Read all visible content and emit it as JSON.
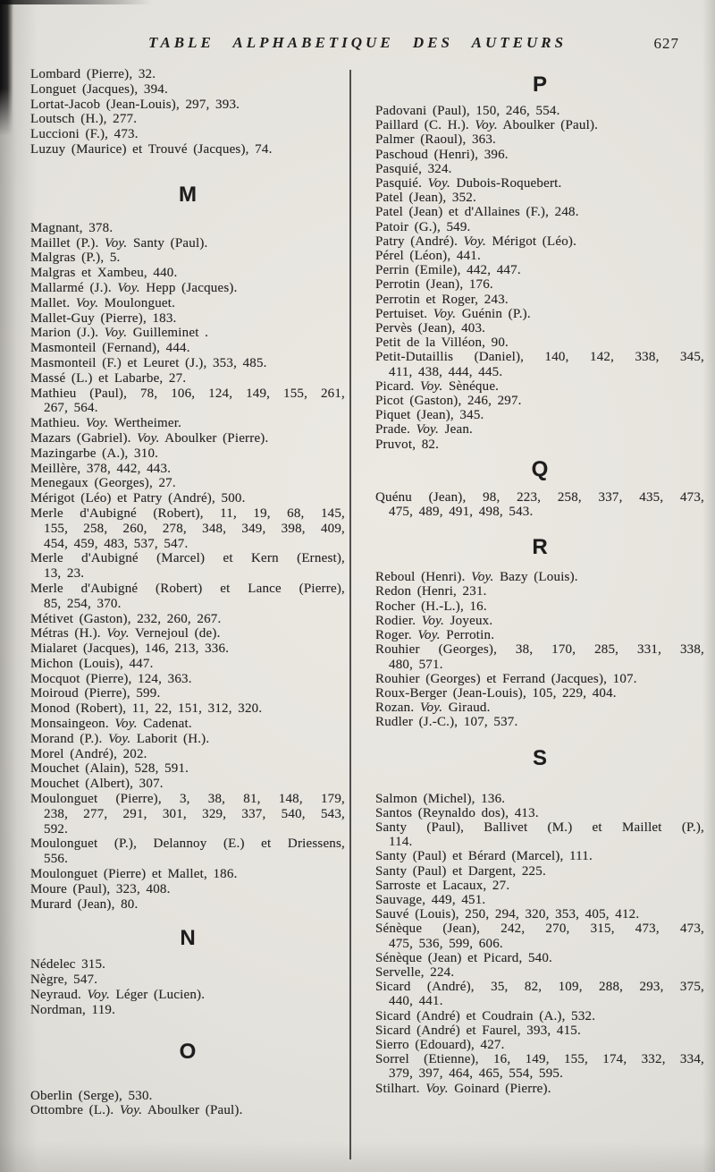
{
  "page": {
    "header_title": "TABLE ALPHABETIQUE DES AUTEURS",
    "page_number": "627"
  },
  "columns": {
    "left": [
      {
        "lines": [
          "Lombard (Pierre), 32."
        ]
      },
      {
        "lines": [
          "Longuet (Jacques), 394."
        ]
      },
      {
        "lines": [
          "Lortat-Jacob (Jean-Louis), 297, 393."
        ]
      },
      {
        "lines": [
          "Loutsch (H.), 277."
        ]
      },
      {
        "lines": [
          "Luccioni (F.), 473."
        ]
      },
      {
        "lines": [
          "Luzuy (Maurice) et Trouvé (Jacques), 74."
        ]
      },
      {
        "section": "M"
      },
      {
        "lines": [
          "Magnant, 378."
        ]
      },
      {
        "lines": [
          "Maillet (P.). Voy. Santy (Paul)."
        ]
      },
      {
        "lines": [
          "Malgras (P.), 5."
        ]
      },
      {
        "lines": [
          "Malgras et Xambeu, 440."
        ]
      },
      {
        "lines": [
          "Mallarmé (J.). Voy. Hepp (Jacques)."
        ]
      },
      {
        "lines": [
          "Mallet. Voy. Moulonguet."
        ]
      },
      {
        "lines": [
          "Mallet-Guy (Pierre), 183."
        ]
      },
      {
        "lines": [
          "Marion (J.). Voy. Guilleminet ."
        ]
      },
      {
        "lines": [
          "Masmonteil (Fernand), 444."
        ]
      },
      {
        "lines": [
          "Masmonteil (F.) et Leuret (J.), 353, 485."
        ]
      },
      {
        "lines": [
          "Massé (L.) et Labarbe, 27."
        ]
      },
      {
        "lines": [
          "Mathieu (Paul), 78, 106, 124, 149, 155, 261,",
          "267, 564."
        ]
      },
      {
        "lines": [
          "Mathieu. Voy. Wertheimer."
        ]
      },
      {
        "lines": [
          "Mazars (Gabriel). Voy. Aboulker (Pierre)."
        ]
      },
      {
        "lines": [
          "Mazingarbe (A.), 310."
        ]
      },
      {
        "lines": [
          "Meillère, 378, 442, 443."
        ]
      },
      {
        "lines": [
          "Menegaux (Georges), 27."
        ]
      },
      {
        "lines": [
          "Mérigot (Léo) et Patry (André), 500."
        ]
      },
      {
        "lines": [
          "Merle d'Aubigné (Robert), 11, 19, 68, 145,",
          "155, 258, 260, 278, 348, 349, 398, 409,",
          "454, 459, 483, 537, 547."
        ]
      },
      {
        "lines": [
          "Merle d'Aubigné (Marcel) et Kern (Ernest),",
          "13, 23."
        ]
      },
      {
        "lines": [
          "Merle d'Aubigné (Robert) et Lance (Pierre),",
          "85, 254, 370."
        ]
      },
      {
        "lines": [
          "Métivet (Gaston), 232, 260, 267."
        ]
      },
      {
        "lines": [
          "Métras (H.). Voy. Vernejoul (de)."
        ]
      },
      {
        "lines": [
          "Mialaret (Jacques), 146, 213, 336."
        ]
      },
      {
        "lines": [
          "Michon (Louis), 447."
        ]
      },
      {
        "lines": [
          "Mocquot (Pierre), 124, 363."
        ]
      },
      {
        "lines": [
          "Moiroud (Pierre), 599."
        ]
      },
      {
        "lines": [
          "Monod (Robert), 11, 22, 151, 312, 320."
        ]
      },
      {
        "lines": [
          "Monsaingeon. Voy. Cadenat."
        ]
      },
      {
        "lines": [
          "Morand (P.). Voy. Laborit (H.)."
        ]
      },
      {
        "lines": [
          "Morel (André), 202."
        ]
      },
      {
        "lines": [
          "Mouchet (Alain), 528, 591."
        ]
      },
      {
        "lines": [
          "Mouchet (Albert), 307."
        ]
      },
      {
        "lines": [
          "Moulonguet (Pierre), 3, 38, 81, 148, 179,",
          "238, 277, 291, 301, 329, 337, 540, 543,",
          "592."
        ]
      },
      {
        "lines": [
          "Moulonguet (P.), Delannoy (E.) et Driessens,",
          "556."
        ]
      },
      {
        "lines": [
          "Moulonguet (Pierre) et Mallet, 186."
        ]
      },
      {
        "lines": [
          "Moure (Paul), 323, 408."
        ]
      },
      {
        "lines": [
          "Murard (Jean), 80."
        ]
      },
      {
        "section": "N"
      },
      {
        "lines": [
          "Nédelec 315."
        ]
      },
      {
        "lines": [
          "Nègre, 547."
        ]
      },
      {
        "lines": [
          "Neyraud. Voy. Léger (Lucien)."
        ]
      },
      {
        "lines": [
          "Nordman, 119."
        ]
      },
      {
        "section": "O"
      },
      {
        "lines": [
          "Oberlin (Serge), 530."
        ]
      },
      {
        "lines": [
          "Ottombre (L.). Voy. Aboulker (Paul)."
        ]
      }
    ],
    "right": [
      {
        "section": "P"
      },
      {
        "lines": [
          "Padovani (Paul), 150, 246, 554."
        ]
      },
      {
        "lines": [
          "Paillard (C. H.). Voy. Aboulker (Paul)."
        ]
      },
      {
        "lines": [
          "Palmer (Raoul), 363."
        ]
      },
      {
        "lines": [
          "Paschoud (Henri), 396."
        ]
      },
      {
        "lines": [
          "Pasquié, 324."
        ]
      },
      {
        "lines": [
          "Pasquié. Voy. Dubois-Roquebert."
        ]
      },
      {
        "lines": [
          "Patel (Jean), 352."
        ]
      },
      {
        "lines": [
          "Patel (Jean) et d'Allaines (F.), 248."
        ]
      },
      {
        "lines": [
          "Patoir (G.), 549."
        ]
      },
      {
        "lines": [
          "Patry (André). Voy. Mérigot (Léo)."
        ]
      },
      {
        "lines": [
          "Pérel (Léon), 441."
        ]
      },
      {
        "lines": [
          "Perrin (Emile), 442, 447."
        ]
      },
      {
        "lines": [
          "Perrotin (Jean), 176."
        ]
      },
      {
        "lines": [
          "Perrotin et Roger, 243."
        ]
      },
      {
        "lines": [
          "Pertuiset. Voy. Guénin (P.)."
        ]
      },
      {
        "lines": [
          "Pervès (Jean), 403."
        ]
      },
      {
        "lines": [
          "Petit de la Villéon, 90."
        ]
      },
      {
        "lines": [
          "Petit-Dutaillis (Daniel), 140, 142, 338, 345,",
          "411, 438, 444, 445."
        ]
      },
      {
        "lines": [
          "Picard. Voy. Sènéque."
        ]
      },
      {
        "lines": [
          "Picot (Gaston), 246, 297."
        ]
      },
      {
        "lines": [
          "Piquet (Jean), 345."
        ]
      },
      {
        "lines": [
          "Prade. Voy. Jean."
        ]
      },
      {
        "lines": [
          "Pruvot, 82."
        ]
      },
      {
        "section": "Q"
      },
      {
        "lines": [
          "Quénu (Jean), 98, 223, 258, 337, 435, 473,",
          "475, 489, 491, 498, 543."
        ]
      },
      {
        "section": "R"
      },
      {
        "lines": [
          "Reboul (Henri). Voy. Bazy (Louis)."
        ]
      },
      {
        "lines": [
          "Redon (Henri, 231."
        ]
      },
      {
        "lines": [
          "Rocher (H.-L.), 16."
        ]
      },
      {
        "lines": [
          "Rodier. Voy. Joyeux."
        ]
      },
      {
        "lines": [
          "Roger. Voy. Perrotin."
        ]
      },
      {
        "lines": [
          "Rouhier (Georges), 38, 170, 285, 331, 338,",
          "480, 571."
        ]
      },
      {
        "lines": [
          "Rouhier (Georges) et Ferrand (Jacques), 107."
        ]
      },
      {
        "lines": [
          "Roux-Berger (Jean-Louis), 105, 229, 404."
        ]
      },
      {
        "lines": [
          "Rozan. Voy. Giraud."
        ]
      },
      {
        "lines": [
          "Rudler (J.-C.), 107, 537."
        ]
      },
      {
        "section": "S"
      },
      {
        "lines": [
          "Salmon (Michel), 136."
        ]
      },
      {
        "lines": [
          "Santos (Reynaldo dos), 413."
        ]
      },
      {
        "lines": [
          "Santy (Paul), Ballivet (M.) et Maillet (P.),",
          "114."
        ]
      },
      {
        "lines": [
          "Santy (Paul) et Bérard (Marcel), 111."
        ]
      },
      {
        "lines": [
          "Santy (Paul) et Dargent, 225."
        ]
      },
      {
        "lines": [
          "Sarroste et Lacaux, 27."
        ]
      },
      {
        "lines": [
          "Sauvage, 449, 451."
        ]
      },
      {
        "lines": [
          "Sauvé (Louis), 250, 294, 320, 353, 405, 412."
        ]
      },
      {
        "lines": [
          "Sénèque (Jean), 242, 270, 315, 473, 473,",
          "475, 536, 599, 606."
        ]
      },
      {
        "lines": [
          "Sénèque (Jean) et Picard, 540."
        ]
      },
      {
        "lines": [
          "Servelle, 224."
        ]
      },
      {
        "lines": [
          "Sicard (André), 35, 82, 109, 288, 293, 375,",
          "440, 441."
        ]
      },
      {
        "lines": [
          "Sicard (André) et Coudrain (A.), 532."
        ]
      },
      {
        "lines": [
          "Sicard (André) et Faurel, 393, 415."
        ]
      },
      {
        "lines": [
          "Sierro (Edouard), 427."
        ]
      },
      {
        "lines": [
          "Sorrel (Etienne), 16, 149, 155, 174, 332, 334,",
          "379, 397, 464, 465, 554, 595."
        ]
      },
      {
        "lines": [
          "Stilhart. Voy. Goinard (Pierre)."
        ]
      }
    ]
  }
}
